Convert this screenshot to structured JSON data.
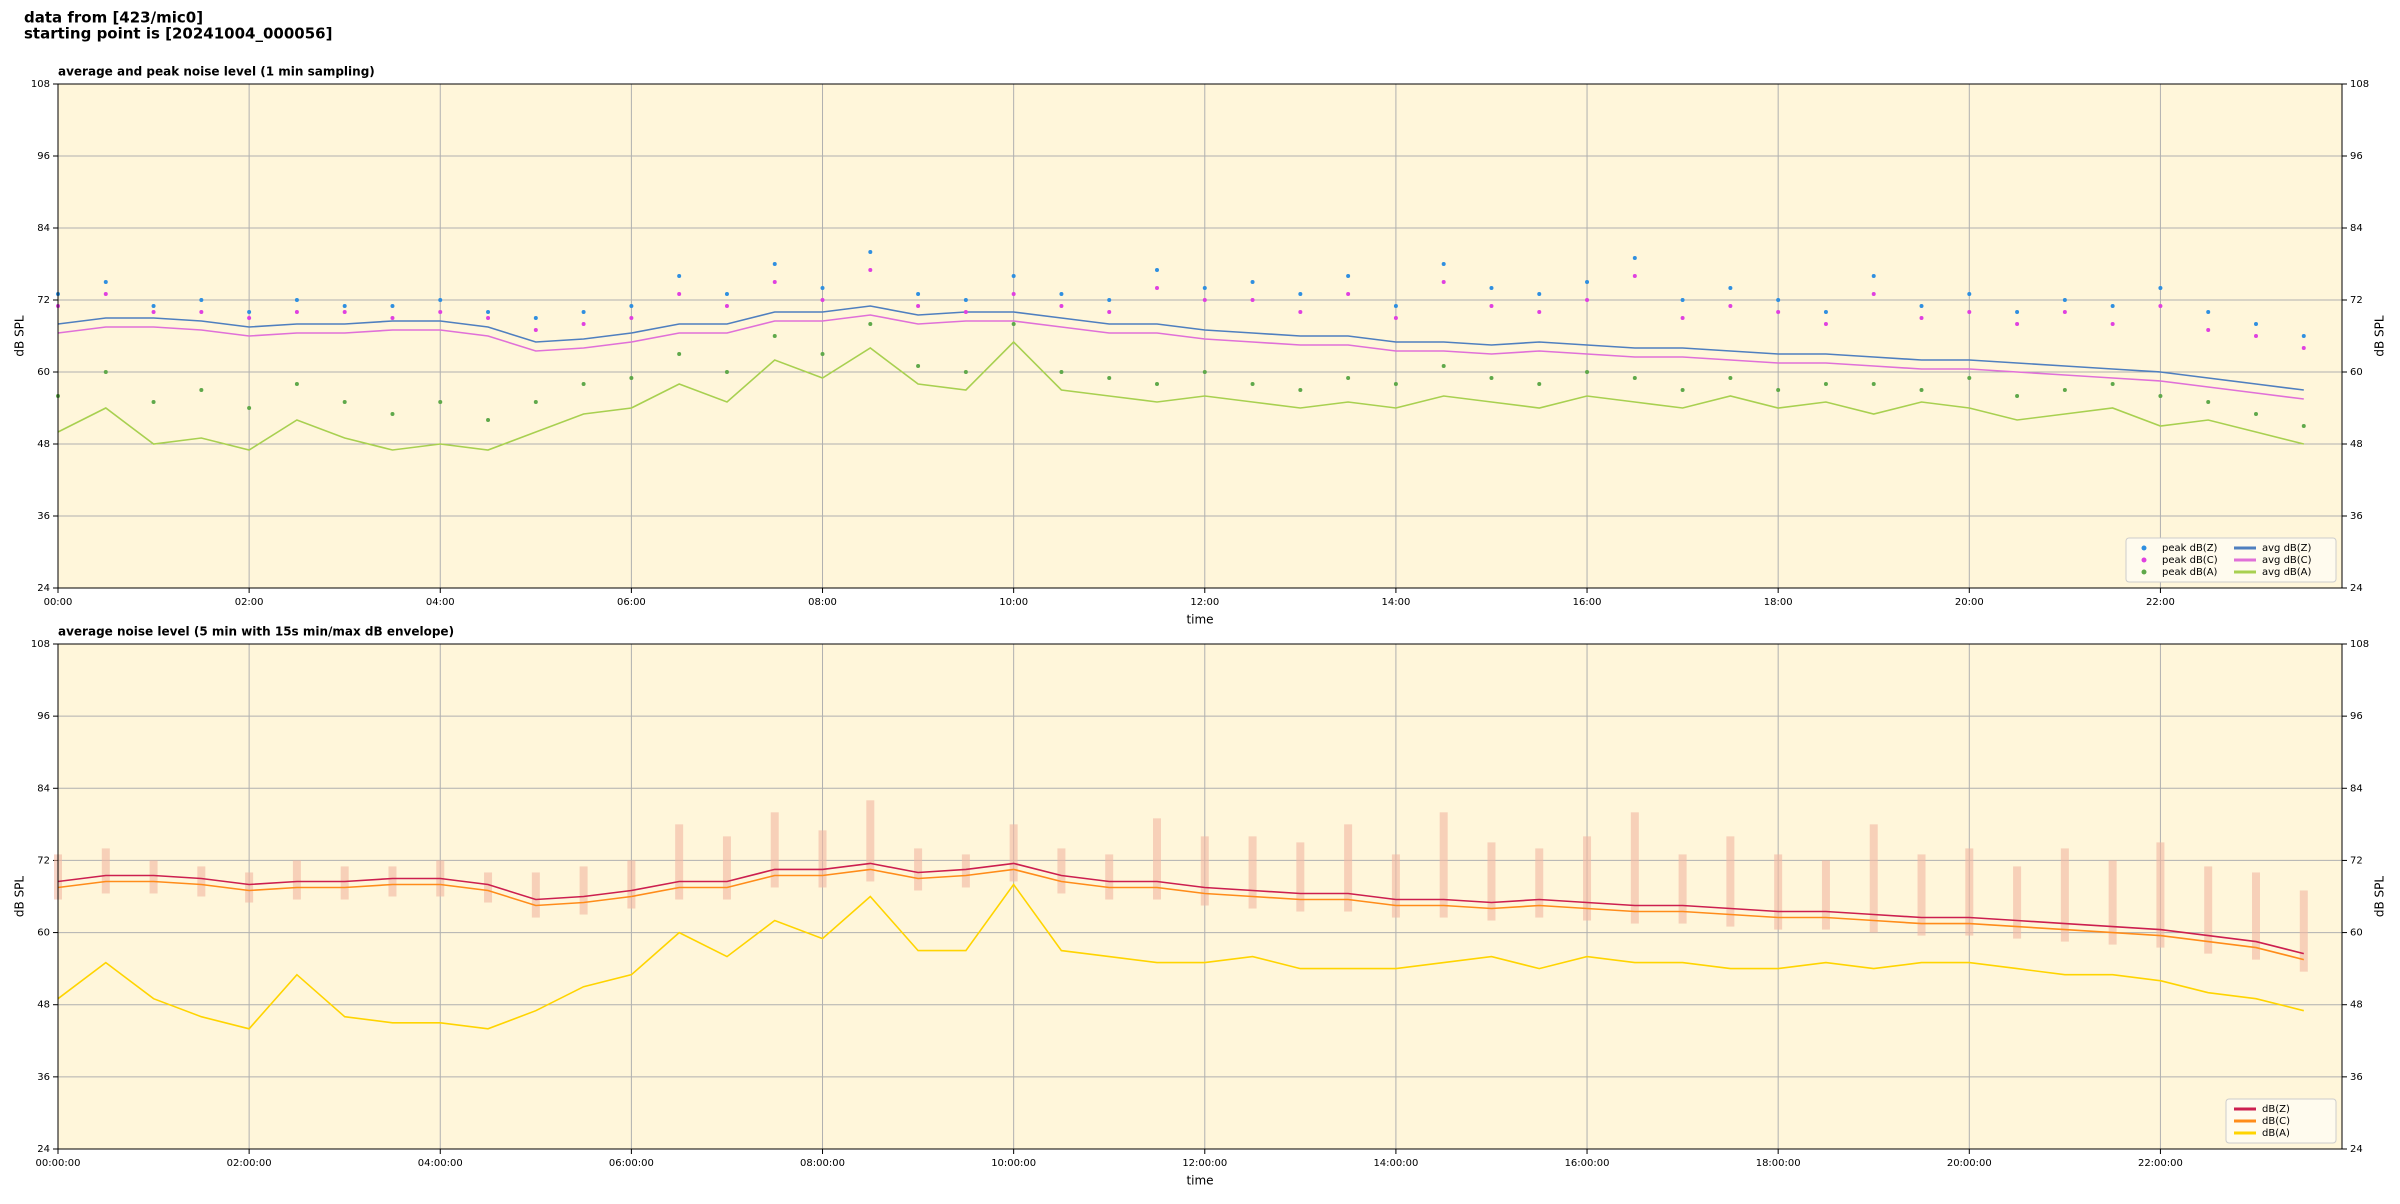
{
  "header": {
    "line1": "data from [423/mic0]",
    "line2": "starting point is [20241004_000056]"
  },
  "chart_data": [
    {
      "type": "line",
      "title": "average and peak noise level (1 min sampling)",
      "xlabel": "time",
      "ylabel": "dB SPL",
      "ylabel_right": "dB SPL",
      "x": [
        0,
        0.5,
        1,
        1.5,
        2,
        2.5,
        3,
        3.5,
        4,
        4.5,
        5,
        5.5,
        6,
        6.5,
        7,
        7.5,
        8,
        8.5,
        9,
        9.5,
        10,
        10.5,
        11,
        11.5,
        12,
        12.5,
        13,
        13.5,
        14,
        14.5,
        15,
        15.5,
        16,
        16.5,
        17,
        17.5,
        18,
        18.5,
        19,
        19.5,
        20,
        20.5,
        21,
        21.5,
        22,
        22.5,
        23,
        23.5
      ],
      "xlim": [
        0,
        23.9
      ],
      "xticks": [
        {
          "value": 0,
          "label": "00:00"
        },
        {
          "value": 2,
          "label": "02:00"
        },
        {
          "value": 4,
          "label": "04:00"
        },
        {
          "value": 6,
          "label": "06:00"
        },
        {
          "value": 8,
          "label": "08:00"
        },
        {
          "value": 10,
          "label": "10:00"
        },
        {
          "value": 12,
          "label": "12:00"
        },
        {
          "value": 14,
          "label": "14:00"
        },
        {
          "value": 16,
          "label": "16:00"
        },
        {
          "value": 18,
          "label": "18:00"
        },
        {
          "value": 20,
          "label": "20:00"
        },
        {
          "value": 22,
          "label": "22:00"
        }
      ],
      "ylim": [
        24,
        108
      ],
      "yticks": [
        24,
        36,
        48,
        60,
        72,
        84,
        96,
        108
      ],
      "grid": true,
      "legend": "lower right",
      "legend_columns": 2,
      "series": [
        {
          "name": "peak dB(Z)",
          "style": "points",
          "color": "#2f8fe0",
          "values": [
            73,
            75,
            71,
            72,
            70,
            72,
            71,
            71,
            72,
            70,
            69,
            70,
            71,
            76,
            73,
            78,
            74,
            80,
            73,
            72,
            76,
            73,
            72,
            77,
            74,
            75,
            73,
            76,
            71,
            78,
            74,
            73,
            75,
            79,
            72,
            74,
            72,
            70,
            76,
            71,
            73,
            70,
            72,
            71,
            74,
            70,
            68,
            66
          ]
        },
        {
          "name": "peak dB(C)",
          "style": "points",
          "color": "#e040e0",
          "values": [
            71,
            73,
            70,
            70,
            69,
            70,
            70,
            69,
            70,
            69,
            67,
            68,
            69,
            73,
            71,
            75,
            72,
            77,
            71,
            70,
            73,
            71,
            70,
            74,
            72,
            72,
            70,
            73,
            69,
            75,
            71,
            70,
            72,
            76,
            69,
            71,
            70,
            68,
            73,
            69,
            70,
            68,
            70,
            68,
            71,
            67,
            66,
            64
          ]
        },
        {
          "name": "peak dB(A)",
          "style": "points",
          "color": "#5fa84a",
          "values": [
            56,
            60,
            55,
            57,
            54,
            58,
            55,
            53,
            55,
            52,
            55,
            58,
            59,
            63,
            60,
            66,
            63,
            68,
            61,
            60,
            68,
            60,
            59,
            58,
            60,
            58,
            57,
            59,
            58,
            61,
            59,
            58,
            60,
            59,
            57,
            59,
            57,
            58,
            58,
            57,
            59,
            56,
            57,
            58,
            56,
            55,
            53,
            51
          ]
        },
        {
          "name": "avg dB(Z)",
          "style": "line",
          "color": "#4f7fbf",
          "values": [
            68,
            69,
            69,
            68.5,
            67.5,
            68,
            68,
            68.5,
            68.5,
            67.5,
            65,
            65.5,
            66.5,
            68,
            68,
            70,
            70,
            71,
            69.5,
            70,
            70,
            69,
            68,
            68,
            67,
            66.5,
            66,
            66,
            65,
            65,
            64.5,
            65,
            64.5,
            64,
            64,
            63.5,
            63,
            63,
            62.5,
            62,
            62,
            61.5,
            61,
            60.5,
            60,
            59,
            58,
            57
          ]
        },
        {
          "name": "avg dB(C)",
          "style": "line",
          "color": "#e070d8",
          "values": [
            66.5,
            67.5,
            67.5,
            67,
            66,
            66.5,
            66.5,
            67,
            67,
            66,
            63.5,
            64,
            65,
            66.5,
            66.5,
            68.5,
            68.5,
            69.5,
            68,
            68.5,
            68.5,
            67.5,
            66.5,
            66.5,
            65.5,
            65,
            64.5,
            64.5,
            63.5,
            63.5,
            63,
            63.5,
            63,
            62.5,
            62.5,
            62,
            61.5,
            61.5,
            61,
            60.5,
            60.5,
            60,
            59.5,
            59,
            58.5,
            57.5,
            56.5,
            55.5
          ]
        },
        {
          "name": "avg dB(A)",
          "style": "line",
          "color": "#a8d050",
          "values": [
            50,
            54,
            48,
            49,
            47,
            52,
            49,
            47,
            48,
            47,
            50,
            53,
            54,
            58,
            55,
            62,
            59,
            64,
            58,
            57,
            65,
            57,
            56,
            55,
            56,
            55,
            54,
            55,
            54,
            56,
            55,
            54,
            56,
            55,
            54,
            56,
            54,
            55,
            53,
            55,
            54,
            52,
            53,
            54,
            51,
            52,
            50,
            48
          ]
        }
      ]
    },
    {
      "type": "line",
      "title": "average noise level (5 min with 15s min/max dB envelope)",
      "xlabel": "time",
      "ylabel": "dB SPL",
      "ylabel_right": "dB SPL",
      "x": [
        0,
        0.5,
        1,
        1.5,
        2,
        2.5,
        3,
        3.5,
        4,
        4.5,
        5,
        5.5,
        6,
        6.5,
        7,
        7.5,
        8,
        8.5,
        9,
        9.5,
        10,
        10.5,
        11,
        11.5,
        12,
        12.5,
        13,
        13.5,
        14,
        14.5,
        15,
        15.5,
        16,
        16.5,
        17,
        17.5,
        18,
        18.5,
        19,
        19.5,
        20,
        20.5,
        21,
        21.5,
        22,
        22.5,
        23,
        23.5
      ],
      "xlim": [
        0,
        23.9
      ],
      "xticks": [
        {
          "value": 0,
          "label": "00:00:00"
        },
        {
          "value": 2,
          "label": "02:00:00"
        },
        {
          "value": 4,
          "label": "04:00:00"
        },
        {
          "value": 6,
          "label": "06:00:00"
        },
        {
          "value": 8,
          "label": "08:00:00"
        },
        {
          "value": 10,
          "label": "10:00:00"
        },
        {
          "value": 12,
          "label": "12:00:00"
        },
        {
          "value": 14,
          "label": "14:00:00"
        },
        {
          "value": 16,
          "label": "16:00:00"
        },
        {
          "value": 18,
          "label": "18:00:00"
        },
        {
          "value": 20,
          "label": "20:00:00"
        },
        {
          "value": 22,
          "label": "22:00:00"
        }
      ],
      "ylim": [
        24,
        108
      ],
      "yticks": [
        24,
        36,
        48,
        60,
        72,
        84,
        96,
        108
      ],
      "grid": true,
      "legend": "lower right",
      "legend_columns": 1,
      "envelope": {
        "color": "#f2b8a2",
        "low": [
          65.5,
          66.5,
          66.5,
          66,
          65,
          65.5,
          65.5,
          66,
          66,
          65,
          62.5,
          63,
          64,
          65.5,
          65.5,
          67.5,
          67.5,
          68.5,
          67,
          67.5,
          68.5,
          66.5,
          65.5,
          65.5,
          64.5,
          64,
          63.5,
          63.5,
          62.5,
          62.5,
          62,
          62.5,
          62,
          61.5,
          61.5,
          61,
          60.5,
          60.5,
          60,
          59.5,
          59.5,
          59,
          58.5,
          58,
          57.5,
          56.5,
          55.5,
          53.5
        ],
        "high": [
          73,
          74,
          72,
          71,
          70,
          72,
          71,
          71,
          72,
          70,
          70,
          71,
          72,
          78,
          76,
          80,
          77,
          82,
          74,
          73,
          78,
          74,
          73,
          79,
          76,
          76,
          75,
          78,
          73,
          80,
          75,
          74,
          76,
          80,
          73,
          76,
          73,
          72,
          78,
          73,
          74,
          71,
          74,
          72,
          75,
          71,
          70,
          67
        ]
      },
      "series": [
        {
          "name": "dB(Z)",
          "style": "line",
          "color": "#cc1f4f",
          "values": [
            68.5,
            69.5,
            69.5,
            69,
            68,
            68.5,
            68.5,
            69,
            69,
            68,
            65.5,
            66,
            67,
            68.5,
            68.5,
            70.5,
            70.5,
            71.5,
            70,
            70.5,
            71.5,
            69.5,
            68.5,
            68.5,
            67.5,
            67,
            66.5,
            66.5,
            65.5,
            65.5,
            65,
            65.5,
            65,
            64.5,
            64.5,
            64,
            63.5,
            63.5,
            63,
            62.5,
            62.5,
            62,
            61.5,
            61,
            60.5,
            59.5,
            58.5,
            56.5
          ]
        },
        {
          "name": "dB(C)",
          "style": "line",
          "color": "#ff8c1a",
          "values": [
            67.5,
            68.5,
            68.5,
            68,
            67,
            67.5,
            67.5,
            68,
            68,
            67,
            64.5,
            65,
            66,
            67.5,
            67.5,
            69.5,
            69.5,
            70.5,
            69,
            69.5,
            70.5,
            68.5,
            67.5,
            67.5,
            66.5,
            66,
            65.5,
            65.5,
            64.5,
            64.5,
            64,
            64.5,
            64,
            63.5,
            63.5,
            63,
            62.5,
            62.5,
            62,
            61.5,
            61.5,
            61,
            60.5,
            60,
            59.5,
            58.5,
            57.5,
            55.5
          ]
        },
        {
          "name": "dB(A)",
          "style": "line",
          "color": "#ffd400",
          "values": [
            49,
            55,
            49,
            46,
            44,
            53,
            46,
            45,
            45,
            44,
            47,
            51,
            53,
            60,
            56,
            62,
            59,
            66,
            57,
            57,
            68,
            57,
            56,
            55,
            55,
            56,
            54,
            54,
            54,
            55,
            56,
            54,
            56,
            55,
            55,
            54,
            54,
            55,
            54,
            55,
            55,
            54,
            53,
            53,
            52,
            50,
            49,
            47
          ]
        }
      ]
    }
  ]
}
